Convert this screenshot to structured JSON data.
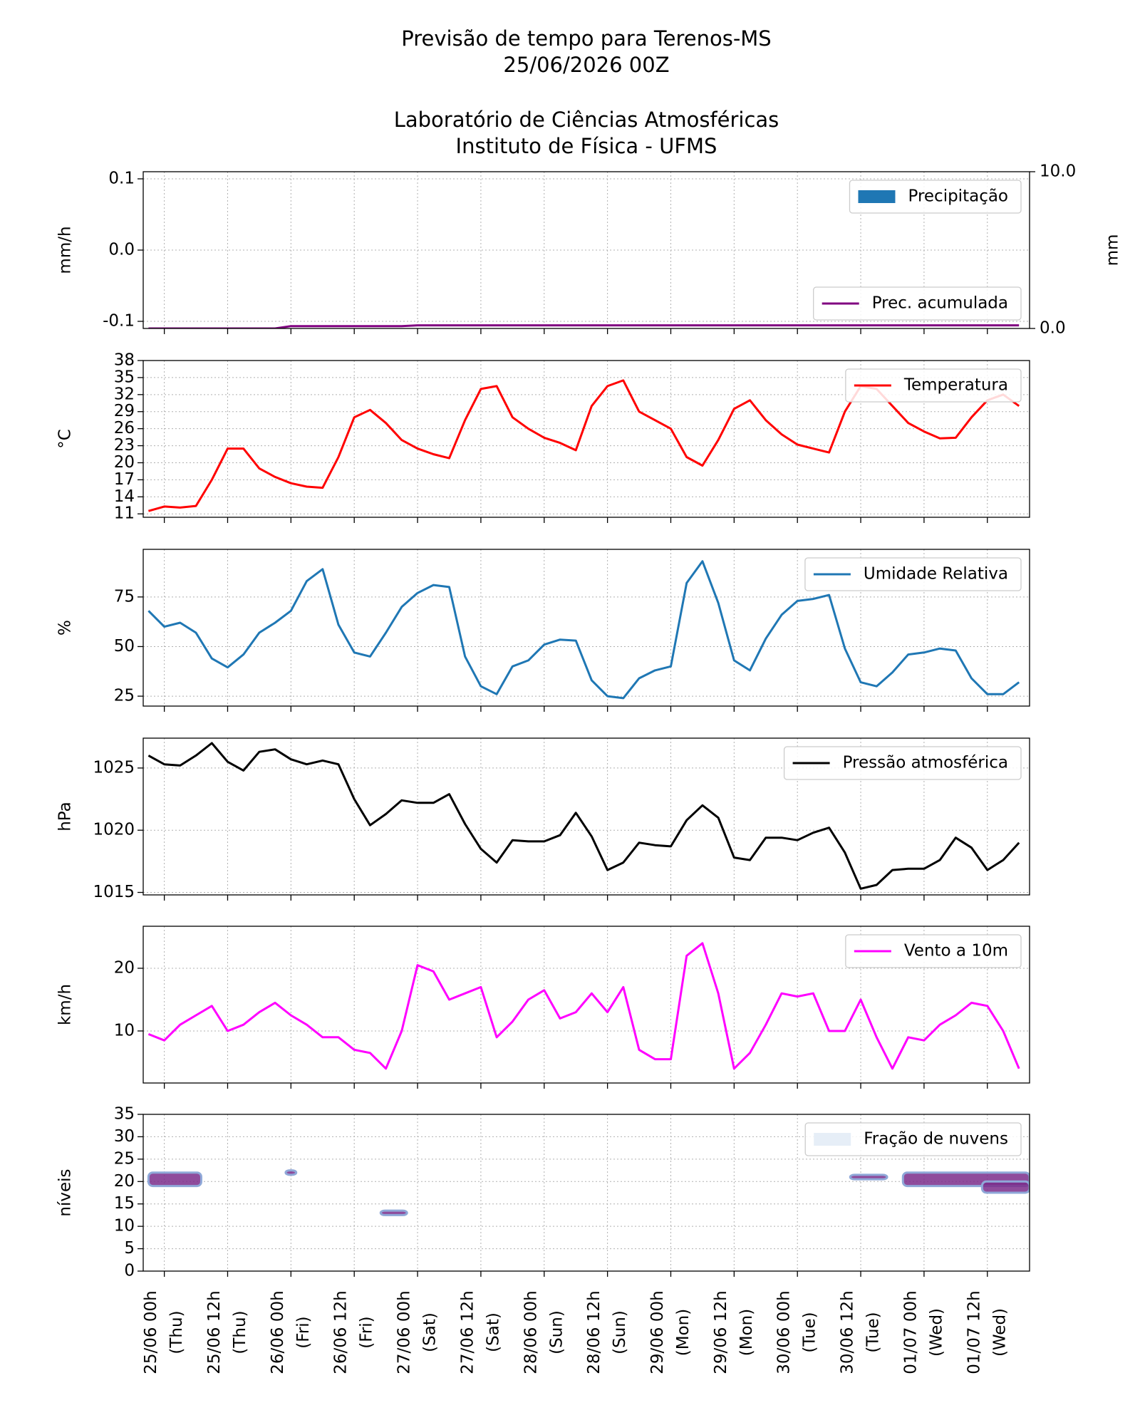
{
  "header": {
    "title": [
      "Previsão de tempo para Terenos-MS",
      "25/06/2026 00Z"
    ],
    "subtitle": [
      "Laboratório de Ciências Atmosféricas",
      "Instituto de Física - UFMS"
    ]
  },
  "x_axis": {
    "x": [
      -3,
      0,
      3,
      6,
      9,
      12,
      15,
      18,
      21,
      24,
      27,
      30,
      33,
      36,
      39,
      42,
      45,
      48,
      51,
      54,
      57,
      60,
      63,
      66,
      69,
      72,
      75,
      78,
      81,
      84,
      87,
      90,
      93,
      96,
      99,
      102,
      105,
      108,
      111,
      114,
      117,
      120,
      123,
      126,
      129,
      132,
      135,
      138,
      141,
      144,
      147,
      150,
      153,
      156,
      159,
      162
    ],
    "xlim": [
      -4,
      164
    ],
    "xticks": [
      {
        "value": 0,
        "label": "25/06 00h"
      },
      {
        "value": 12,
        "label": "25/06 12h"
      },
      {
        "value": 24,
        "label": "26/06 00h"
      },
      {
        "value": 36,
        "label": "26/06 12h"
      },
      {
        "value": 48,
        "label": "27/06 00h"
      },
      {
        "value": 60,
        "label": "27/06 12h"
      },
      {
        "value": 72,
        "label": "28/06 00h"
      },
      {
        "value": 84,
        "label": "28/06 12h"
      },
      {
        "value": 96,
        "label": "29/06 00h"
      },
      {
        "value": 108,
        "label": "29/06 12h"
      },
      {
        "value": 120,
        "label": "30/06 00h"
      },
      {
        "value": 132,
        "label": "30/06 12h"
      },
      {
        "value": 144,
        "label": "01/07 00h"
      },
      {
        "value": 156,
        "label": "01/07 12h"
      }
    ],
    "xtick_sublabels": [
      "(Thu)",
      "(Thu)",
      "(Fri)",
      "(Fri)",
      "(Sat)",
      "(Sat)",
      "(Sun)",
      "(Sun)",
      "(Mon)",
      "(Mon)",
      "(Tue)",
      "(Tue)",
      "(Wed)",
      "(Wed)"
    ],
    "grid": true
  },
  "chart_data": [
    {
      "type": "line",
      "ylabel": "mm/h",
      "y2label": "mm",
      "ylim": [
        -0.11,
        0.11
      ],
      "yticks": [
        -0.1,
        {
          "value": 0,
          "label": "0.0"
        },
        0.1
      ],
      "y2lim": [
        0,
        10
      ],
      "y2ticks": [
        {
          "value": 0,
          "label": "0.0"
        },
        {
          "value": 10,
          "label": "10.0"
        }
      ],
      "series": [
        {
          "name": "Precipitação",
          "type": "bar",
          "color": "#1f77b4",
          "legend": "upper right",
          "values": [
            0,
            0,
            0,
            0,
            0,
            0,
            0,
            0,
            0,
            0,
            0,
            0,
            0,
            0,
            0,
            0,
            0,
            0,
            0,
            0,
            0,
            0,
            0,
            0,
            0,
            0,
            0,
            0,
            0,
            0,
            0,
            0,
            0,
            0,
            0,
            0,
            0,
            0,
            0,
            0,
            0,
            0,
            0,
            0,
            0,
            0,
            0,
            0,
            0,
            0,
            0,
            0,
            0,
            0,
            0,
            0
          ]
        },
        {
          "name": "Prec. acumulada",
          "type": "line",
          "axis": "y2",
          "color": "#800080",
          "legend": "lower right",
          "values": [
            0,
            0,
            0,
            0,
            0,
            0,
            0,
            0,
            0,
            0.15,
            0.15,
            0.15,
            0.15,
            0.15,
            0.15,
            0.15,
            0.15,
            0.2,
            0.2,
            0.2,
            0.2,
            0.2,
            0.2,
            0.2,
            0.2,
            0.2,
            0.2,
            0.2,
            0.2,
            0.2,
            0.2,
            0.2,
            0.2,
            0.2,
            0.2,
            0.2,
            0.2,
            0.2,
            0.2,
            0.2,
            0.2,
            0.2,
            0.2,
            0.2,
            0.2,
            0.2,
            0.2,
            0.2,
            0.2,
            0.2,
            0.2,
            0.2,
            0.2,
            0.2,
            0.2,
            0.2
          ]
        }
      ]
    },
    {
      "type": "line",
      "ylabel": "°C",
      "ylim": [
        10.4,
        38
      ],
      "yticks": [
        11,
        14,
        17,
        20,
        23,
        26,
        29,
        32,
        35,
        38
      ],
      "series": [
        {
          "name": "Temperatura",
          "type": "line",
          "color": "#ff0000",
          "legend": "upper right",
          "values": [
            11.5,
            12.3,
            12.1,
            12.4,
            17,
            22.5,
            22.5,
            19,
            17.5,
            16.4,
            15.8,
            15.6,
            21,
            28,
            29.3,
            27,
            24,
            22.5,
            21.5,
            20.8,
            27.5,
            33,
            33.5,
            28,
            26,
            24.4,
            23.5,
            22.2,
            30,
            33.5,
            34.5,
            29,
            27.5,
            26,
            21,
            19.5,
            24,
            29.5,
            31,
            27.5,
            25,
            23.2,
            22.5,
            21.8,
            29,
            33.5,
            33,
            30,
            27,
            25.5,
            24.3,
            24.4,
            28,
            31,
            32,
            30
          ]
        }
      ]
    },
    {
      "type": "line",
      "ylabel": "%",
      "ylim": [
        20,
        99
      ],
      "yticks": [
        25,
        50,
        75
      ],
      "series": [
        {
          "name": "Umidade Relativa",
          "type": "line",
          "color": "#1f77b4",
          "legend": "upper right",
          "values": [
            68,
            60,
            62,
            57,
            44,
            39.5,
            46,
            57,
            62,
            68,
            83,
            89,
            61,
            47,
            45,
            57,
            70,
            77,
            81,
            80,
            45,
            30,
            26,
            40,
            43,
            51,
            53.5,
            53,
            33,
            25,
            24,
            34,
            38,
            40,
            82,
            93,
            72,
            43,
            38,
            54,
            66,
            73,
            74,
            76,
            49,
            32,
            30,
            37,
            46,
            47,
            49,
            48,
            34,
            26,
            26,
            32
          ]
        }
      ]
    },
    {
      "type": "line",
      "ylabel": "hPa",
      "ylim": [
        1014.8,
        1027.4
      ],
      "yticks": [
        1015,
        1020,
        1025
      ],
      "series": [
        {
          "name": "Pressão atmosférica",
          "type": "line",
          "color": "#000000",
          "legend": "upper right",
          "values": [
            1026,
            1025.3,
            1025.2,
            1026,
            1027,
            1025.5,
            1024.8,
            1026.3,
            1026.5,
            1025.7,
            1025.3,
            1025.6,
            1025.3,
            1022.5,
            1020.4,
            1021.3,
            1022.4,
            1022.2,
            1022.2,
            1022.9,
            1020.5,
            1018.5,
            1017.4,
            1019.2,
            1019.1,
            1019.1,
            1019.6,
            1021.4,
            1019.5,
            1016.8,
            1017.4,
            1019,
            1018.8,
            1018.7,
            1020.8,
            1022,
            1021,
            1017.8,
            1017.6,
            1019.4,
            1019.4,
            1019.2,
            1019.8,
            1020.2,
            1018.2,
            1015.3,
            1015.6,
            1016.8,
            1016.9,
            1016.9,
            1017.6,
            1019.4,
            1018.6,
            1016.8,
            1017.6,
            1019
          ]
        }
      ]
    },
    {
      "type": "line",
      "ylabel": "km/h",
      "ylim": [
        1.7,
        26.7
      ],
      "yticks": [
        10,
        20
      ],
      "series": [
        {
          "name": "Vento a 10m",
          "type": "line",
          "color": "#ff00ff",
          "legend": "upper right",
          "values": [
            9.5,
            8.5,
            11,
            12.5,
            14,
            10,
            11,
            13,
            14.5,
            12.5,
            11,
            9,
            9,
            7,
            6.5,
            4,
            10,
            20.5,
            19.5,
            15,
            16,
            17,
            9,
            11.5,
            15,
            16.5,
            12,
            13,
            16,
            13,
            17,
            7,
            5.5,
            5.5,
            22,
            24,
            16,
            4,
            6.5,
            11,
            16,
            15.5,
            16,
            10,
            10,
            15,
            9,
            4,
            9,
            8.5,
            11,
            12.5,
            14.5,
            14,
            10,
            4
          ]
        }
      ]
    },
    {
      "type": "heatmap",
      "ylabel": "níveis",
      "ylim": [
        0,
        35
      ],
      "yticks": [
        0,
        5,
        10,
        15,
        20,
        25,
        30,
        35
      ],
      "series": [
        {
          "name": "Fração de nuvens",
          "color": "#e6eef7",
          "patch_color": "#7b2d8b",
          "legend": "upper right",
          "patches": [
            {
              "x": [
                -3,
                7
              ],
              "y": [
                19,
                22
              ]
            },
            {
              "x": [
                23,
                25
              ],
              "y": [
                21.5,
                22.5
              ]
            },
            {
              "x": [
                41,
                46
              ],
              "y": [
                12.5,
                13.5
              ]
            },
            {
              "x": [
                130,
                137
              ],
              "y": [
                20.5,
                21.5
              ]
            },
            {
              "x": [
                140,
                164
              ],
              "y": [
                19,
                22
              ]
            },
            {
              "x": [
                155,
                164
              ],
              "y": [
                17.5,
                20
              ]
            }
          ]
        }
      ]
    }
  ]
}
